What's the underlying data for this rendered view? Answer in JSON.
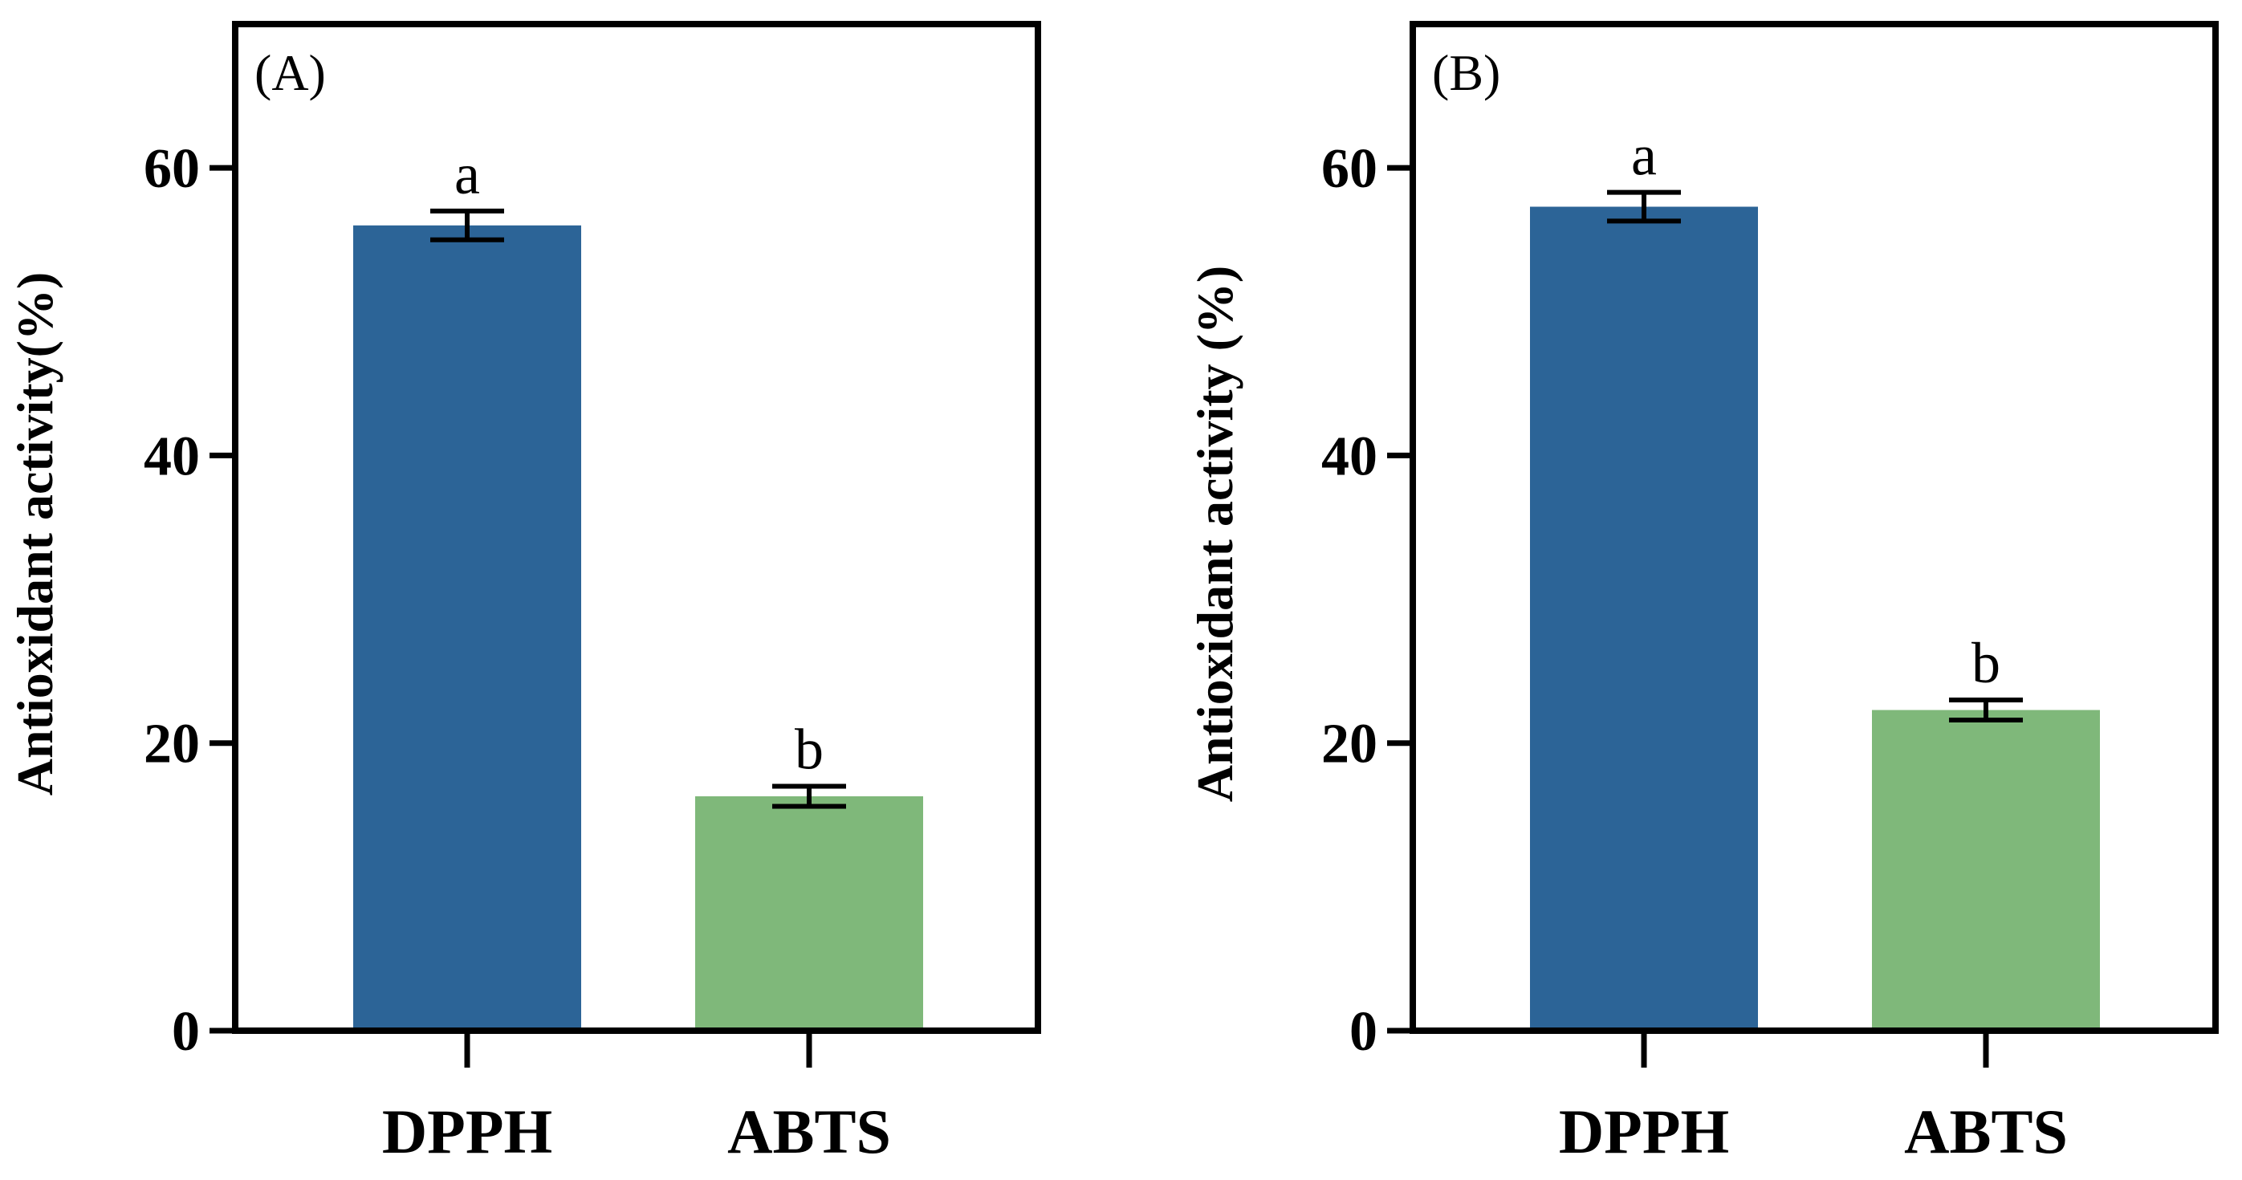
{
  "chart_data": [
    {
      "type": "bar",
      "panel_label": "(A)",
      "categories": [
        "DPPH",
        "ABTS"
      ],
      "values": [
        56.0,
        16.3
      ],
      "errors": [
        1.0,
        0.7
      ],
      "significance": [
        "a",
        "b"
      ],
      "colors": [
        "#2c6497",
        "#7fb87a"
      ],
      "ylabel": "Antioxidant activity(%)",
      "ylim": [
        0,
        70
      ],
      "yticks": [
        0,
        20,
        40,
        60
      ]
    },
    {
      "type": "bar",
      "panel_label": "(B)",
      "categories": [
        "DPPH",
        "ABTS"
      ],
      "values": [
        57.3,
        22.3
      ],
      "errors": [
        1.0,
        0.7
      ],
      "significance": [
        "a",
        "b"
      ],
      "colors": [
        "#2c6497",
        "#7fb87a"
      ],
      "ylabel": "Antioxidant activity (%)",
      "ylim": [
        0,
        70
      ],
      "yticks": [
        0,
        20,
        40,
        60
      ]
    }
  ]
}
